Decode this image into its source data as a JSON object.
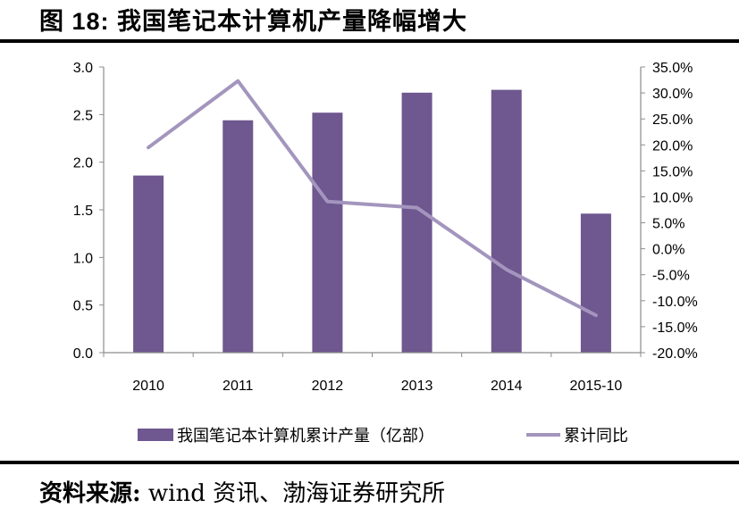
{
  "title": "图 18:  我国笔记本计算机产量降幅增大",
  "source": {
    "label": "资料来源:",
    "text": "wind 资讯、渤海证券研究所"
  },
  "colors": {
    "bar": "#6f578f",
    "line": "#a395bd",
    "axis": "#8c8c8c"
  },
  "chart_data": {
    "type": "bar+line",
    "categories": [
      "2010",
      "2011",
      "2012",
      "2013",
      "2014",
      "2015-10"
    ],
    "series": [
      {
        "name": "我国笔记本计算机累计产量（亿部）",
        "type": "bar",
        "axis": "left",
        "values": [
          1.86,
          2.44,
          2.52,
          2.73,
          2.76,
          1.46
        ]
      },
      {
        "name": "累计同比",
        "type": "line",
        "axis": "right",
        "values": [
          19.5,
          32.3,
          9.1,
          7.9,
          -4.0,
          -12.8
        ]
      }
    ],
    "left_axis": {
      "range": [
        0,
        3.0
      ],
      "ticks": [
        "0.0",
        "0.5",
        "1.0",
        "1.5",
        "2.0",
        "2.5",
        "3.0"
      ]
    },
    "right_axis": {
      "range": [
        -20,
        35
      ],
      "ticks": [
        "-20.0%",
        "-15.0%",
        "-10.0%",
        "-5.0%",
        "0.0%",
        "5.0%",
        "10.0%",
        "15.0%",
        "20.0%",
        "25.0%",
        "30.0%",
        "35.0%"
      ]
    },
    "legend_position": "bottom",
    "grid": false
  }
}
